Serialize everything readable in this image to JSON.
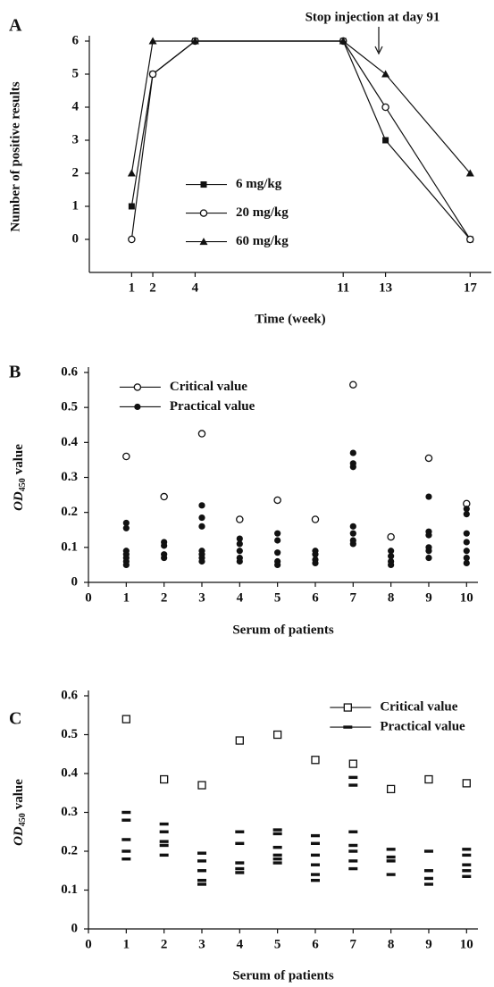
{
  "chart_data": [
    {
      "type": "line",
      "label": "A",
      "xlabel": "Time (week)",
      "ylabel": "Number of positive results",
      "annotation": "Stop injection at day 91",
      "xlim": [
        -1,
        18
      ],
      "ylim": [
        -1,
        6
      ],
      "xticks": [
        1,
        2,
        4,
        11,
        13,
        17
      ],
      "yticks": [
        0,
        1,
        2,
        3,
        4,
        5,
        6
      ],
      "legend": "lower left",
      "series": [
        {
          "name": "6 mg/kg",
          "marker": "square",
          "color": "#111111",
          "x": [
            1,
            2,
            4,
            11,
            13,
            17
          ],
          "values": [
            1,
            5,
            6,
            6,
            3,
            0
          ]
        },
        {
          "name": "20 mg/kg",
          "marker": "circle",
          "color": "#111111",
          "x": [
            1,
            2,
            4,
            11,
            13,
            17
          ],
          "values": [
            0,
            5,
            6,
            6,
            4,
            0
          ]
        },
        {
          "name": "60 mg/kg",
          "marker": "triangle",
          "color": "#111111",
          "x": [
            1,
            2,
            4,
            11,
            13,
            17
          ],
          "values": [
            2,
            6,
            6,
            6,
            5,
            2
          ]
        }
      ]
    },
    {
      "type": "scatter",
      "label": "B",
      "xlabel": "Serum of patients",
      "ylabel": {
        "italic": "OD",
        "subscript": "450",
        "text": "value"
      },
      "xlim": [
        0,
        10.3
      ],
      "ylim": [
        0,
        0.6
      ],
      "xticks": [
        0,
        1,
        2,
        3,
        4,
        5,
        6,
        7,
        8,
        9,
        10
      ],
      "yticks": [
        0,
        0.1,
        0.2,
        0.3,
        0.4,
        0.5,
        0.6
      ],
      "legend": "upper left",
      "series": [
        {
          "name": "Critical value",
          "marker": "circle",
          "color": "#111111",
          "x": [
            1,
            2,
            3,
            4,
            5,
            6,
            7,
            8,
            9,
            10
          ],
          "values": [
            0.36,
            0.245,
            0.425,
            0.18,
            0.235,
            0.18,
            0.565,
            0.13,
            0.355,
            0.225
          ]
        },
        {
          "name": "Practical value",
          "marker": "dot",
          "color": "#111111",
          "x": [
            1,
            1,
            1,
            1,
            1,
            1,
            1,
            2,
            2,
            2,
            2,
            3,
            3,
            3,
            3,
            3,
            3,
            3,
            4,
            4,
            4,
            4,
            4,
            5,
            5,
            5,
            5,
            5,
            6,
            6,
            6,
            6,
            7,
            7,
            7,
            7,
            7,
            7,
            7,
            8,
            8,
            8,
            8,
            9,
            9,
            9,
            9,
            9,
            9,
            10,
            10,
            10,
            10,
            10,
            10,
            10
          ],
          "values": [
            0.17,
            0.155,
            0.09,
            0.08,
            0.07,
            0.06,
            0.05,
            0.115,
            0.105,
            0.08,
            0.07,
            0.22,
            0.185,
            0.16,
            0.09,
            0.08,
            0.07,
            0.06,
            0.125,
            0.11,
            0.09,
            0.07,
            0.06,
            0.14,
            0.12,
            0.085,
            0.06,
            0.05,
            0.09,
            0.08,
            0.065,
            0.055,
            0.37,
            0.34,
            0.33,
            0.16,
            0.14,
            0.12,
            0.11,
            0.09,
            0.075,
            0.06,
            0.05,
            0.245,
            0.145,
            0.135,
            0.1,
            0.09,
            0.07,
            0.21,
            0.195,
            0.14,
            0.115,
            0.09,
            0.07,
            0.055
          ]
        }
      ]
    },
    {
      "type": "scatter",
      "label": "C",
      "xlabel": "Serum of patients",
      "ylabel": {
        "italic": "OD",
        "subscript": "450",
        "text": "value"
      },
      "xlim": [
        0,
        10.3
      ],
      "ylim": [
        0,
        0.6
      ],
      "xticks": [
        0,
        1,
        2,
        3,
        4,
        5,
        6,
        7,
        8,
        9,
        10
      ],
      "yticks": [
        0,
        0.1,
        0.2,
        0.3,
        0.4,
        0.5,
        0.6
      ],
      "legend": "upper right",
      "series": [
        {
          "name": "Critical value",
          "marker": "open-square",
          "color": "#111111",
          "x": [
            1,
            2,
            3,
            4,
            5,
            6,
            7,
            8,
            9,
            10
          ],
          "values": [
            0.54,
            0.385,
            0.37,
            0.485,
            0.5,
            0.435,
            0.425,
            0.36,
            0.385,
            0.375
          ]
        },
        {
          "name": "Practical value",
          "marker": "dash",
          "color": "#111111",
          "x": [
            1,
            1,
            1,
            1,
            1,
            2,
            2,
            2,
            2,
            2,
            3,
            3,
            3,
            3,
            3,
            4,
            4,
            4,
            4,
            4,
            5,
            5,
            5,
            5,
            5,
            5,
            6,
            6,
            6,
            6,
            6,
            6,
            7,
            7,
            7,
            7,
            7,
            7,
            7,
            8,
            8,
            8,
            8,
            9,
            9,
            9,
            9,
            10,
            10,
            10,
            10,
            10
          ],
          "values": [
            0.3,
            0.28,
            0.23,
            0.2,
            0.18,
            0.27,
            0.25,
            0.225,
            0.215,
            0.19,
            0.195,
            0.175,
            0.15,
            0.125,
            0.115,
            0.25,
            0.22,
            0.17,
            0.155,
            0.145,
            0.255,
            0.245,
            0.21,
            0.19,
            0.18,
            0.17,
            0.24,
            0.22,
            0.19,
            0.165,
            0.14,
            0.125,
            0.39,
            0.37,
            0.25,
            0.215,
            0.2,
            0.175,
            0.155,
            0.205,
            0.185,
            0.175,
            0.14,
            0.2,
            0.15,
            0.13,
            0.115,
            0.205,
            0.19,
            0.165,
            0.15,
            0.135
          ]
        }
      ]
    }
  ]
}
